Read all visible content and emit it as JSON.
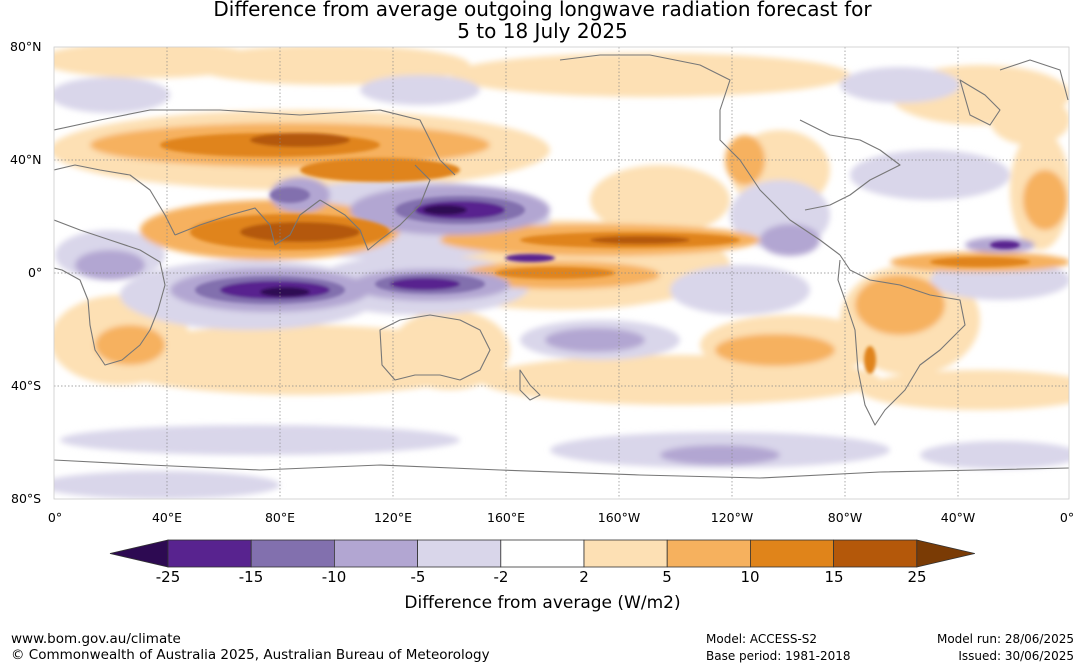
{
  "title_line1": "Difference from average outgoing longwave radiation forecast for",
  "title_line2": "5 to 18 July 2025",
  "lat_labels": [
    "80°N",
    "40°N",
    "0°",
    "40°S",
    "80°S"
  ],
  "lon_labels": [
    "0°",
    "40°E",
    "80°E",
    "120°E",
    "160°E",
    "160°W",
    "120°W",
    "80°W",
    "40°W",
    "0°"
  ],
  "colorbar": {
    "label": "Difference from average (W/m2)",
    "ticks": [
      "-25",
      "-15",
      "-10",
      "-5",
      "-2",
      "2",
      "5",
      "10",
      "15",
      "25"
    ],
    "colors": [
      "#2d0a52",
      "#58238f",
      "#8270ae",
      "#b2a6d2",
      "#d9d6ea",
      "#ffffff",
      "#fde0b4",
      "#f6b15e",
      "#e0841a",
      "#b4580a",
      "#7a3b05"
    ]
  },
  "footer": {
    "url": "www.bom.gov.au/climate",
    "copyright": "© Commonwealth of Australia 2025, Australian Bureau of Meteorology",
    "model": "Model: ACCESS-S2",
    "base_period": "Base period: 1981-2018",
    "model_run": "Model run: 28/06/2025",
    "issued": "Issued: 30/06/2025"
  }
}
